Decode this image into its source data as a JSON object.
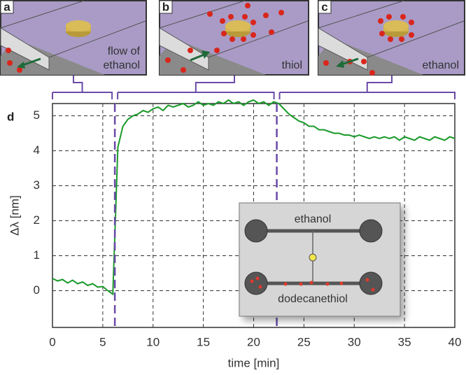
{
  "panels": [
    {
      "letter": "a",
      "caption": [
        "flow of",
        "ethanol"
      ]
    },
    {
      "letter": "b",
      "caption": [
        "thiol"
      ]
    },
    {
      "letter": "c",
      "caption": [
        "ethanol"
      ]
    }
  ],
  "chart_data": {
    "type": "line",
    "panel_label": "d",
    "x_label": "time [min]",
    "y_label": "Δλ [nm]",
    "color": "#1a9a2a",
    "xlim": [
      0,
      40
    ],
    "xticks": [
      0,
      5,
      10,
      15,
      20,
      25,
      30,
      35,
      40
    ],
    "ylim": [
      -1.05,
      5.35
    ],
    "yticks": [
      0,
      1,
      2,
      3,
      4,
      5
    ],
    "grid": true,
    "vlines": [
      6.2,
      22.3
    ],
    "vline_color": "#6a4aa8",
    "x": [
      0,
      0.5,
      1,
      1.5,
      2,
      2.5,
      3,
      3.5,
      4,
      4.5,
      5,
      5.5,
      6,
      6.5,
      7,
      7.5,
      8,
      8.5,
      9,
      9.5,
      10,
      10.5,
      11,
      11.5,
      12,
      12.5,
      13,
      13.5,
      14,
      14.5,
      15,
      15.5,
      16,
      16.5,
      17,
      17.5,
      18,
      18.5,
      19,
      19.5,
      20,
      20.5,
      21,
      21.5,
      22,
      22.5,
      23,
      23.5,
      24,
      24.5,
      25,
      25.5,
      26,
      26.5,
      27,
      27.5,
      28,
      28.5,
      29,
      29.5,
      30,
      30.5,
      31,
      31.5,
      32,
      32.5,
      33,
      33.5,
      34,
      34.5,
      35,
      35.5,
      36,
      36.5,
      37,
      37.5,
      38,
      38.5,
      39,
      39.5,
      40
    ],
    "values": [
      0.35,
      0.28,
      0.32,
      0.22,
      0.3,
      0.2,
      0.25,
      0.15,
      0.2,
      0.1,
      0.12,
      0.0,
      -0.1,
      4.1,
      4.7,
      4.9,
      5.0,
      5.05,
      5.15,
      5.1,
      5.2,
      5.25,
      5.15,
      5.3,
      5.25,
      5.3,
      5.35,
      5.25,
      5.3,
      5.4,
      5.3,
      5.35,
      5.3,
      5.4,
      5.35,
      5.45,
      5.35,
      5.4,
      5.3,
      5.4,
      5.45,
      5.35,
      5.4,
      5.3,
      5.4,
      5.35,
      5.2,
      5.05,
      4.95,
      4.85,
      4.8,
      4.7,
      4.7,
      4.6,
      4.6,
      4.55,
      4.5,
      4.5,
      4.45,
      4.45,
      4.4,
      4.45,
      4.4,
      4.35,
      4.4,
      4.35,
      4.4,
      4.35,
      4.4,
      4.3,
      4.4,
      4.35,
      4.3,
      4.4,
      4.35,
      4.3,
      4.4,
      4.35,
      4.3,
      4.4,
      4.35
    ],
    "inset": {
      "top_channel": "ethanol",
      "bottom_channel": "dodecanethiol"
    }
  }
}
